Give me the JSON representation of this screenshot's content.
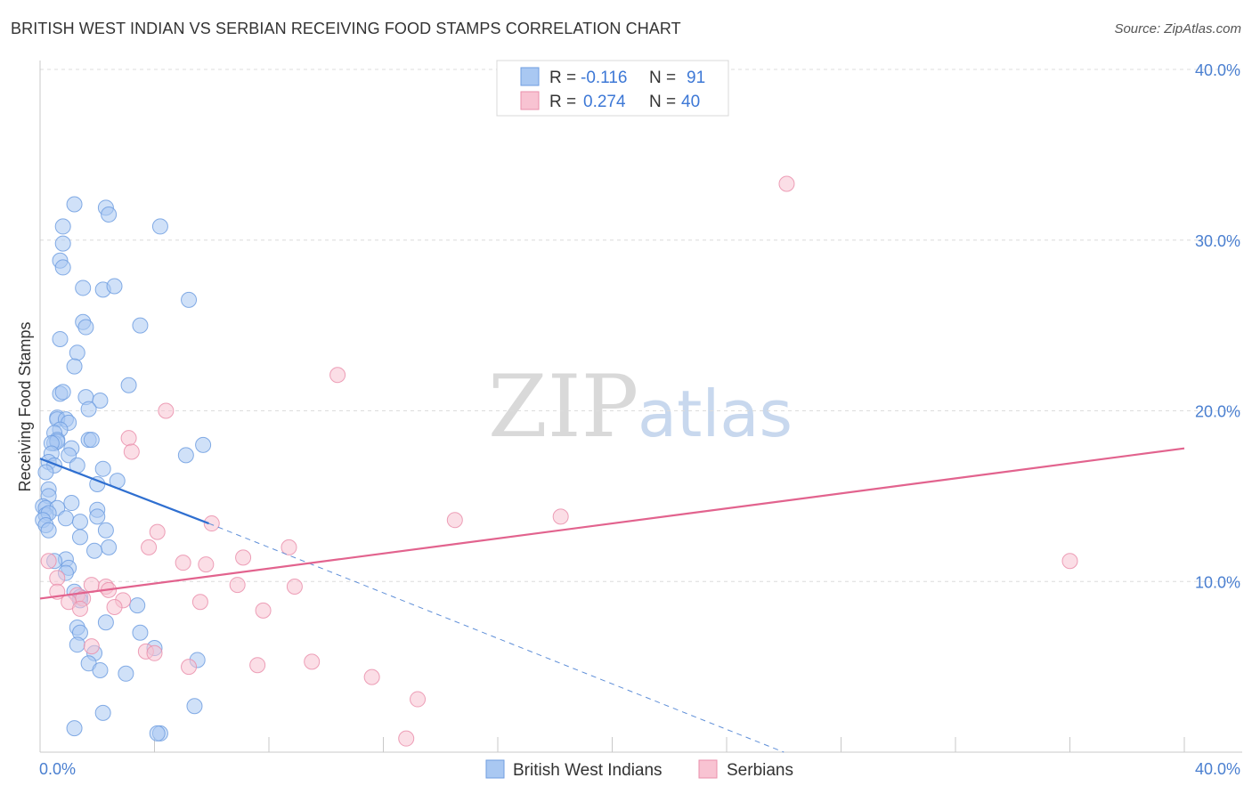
{
  "title": "BRITISH WEST INDIAN VS SERBIAN RECEIVING FOOD STAMPS CORRELATION CHART",
  "source": "Source: ZipAtlas.com",
  "watermark": {
    "zip": "ZIP",
    "atlas": "atlas"
  },
  "legend": {
    "rows": [
      {
        "r_label": "R =",
        "r_value": "-0.116",
        "n_label": "N =",
        "n_value": "91",
        "color": "#a9c8f2",
        "stroke": "#6f9ee0"
      },
      {
        "r_label": "R =",
        "r_value": "0.274",
        "n_label": "N =",
        "n_value": "40",
        "color": "#f8c3d2",
        "stroke": "#ea8fab"
      }
    ]
  },
  "bottom_legend": [
    {
      "label": "British West Indians",
      "color": "#a9c8f2",
      "stroke": "#6f9ee0"
    },
    {
      "label": "Serbians",
      "color": "#f8c3d2",
      "stroke": "#ea8fab"
    }
  ],
  "chart_data": {
    "type": "scatter",
    "title": "BRITISH WEST INDIAN VS SERBIAN RECEIVING FOOD STAMPS CORRELATION CHART",
    "xlabel": "",
    "ylabel": "Receiving Food Stamps",
    "xlim": [
      0,
      40
    ],
    "ylim": [
      0,
      40
    ],
    "x_tick_labels": [
      "0.0%",
      "40.0%"
    ],
    "y_ticks": [
      10,
      20,
      30,
      40
    ],
    "y_tick_labels": [
      "10.0%",
      "20.0%",
      "30.0%",
      "40.0%"
    ],
    "series": [
      {
        "name": "British West Indians",
        "color": "#6f9ee0",
        "fill": "#a9c8f2",
        "regression": {
          "r": -0.116,
          "n": 91,
          "x0": 0.0,
          "y0": 17.2,
          "x1": 5.9,
          "y1": 13.4,
          "dash_x1": 26.0,
          "dash_y1": 0.0
        },
        "points": [
          [
            1.2,
            32.1
          ],
          [
            2.3,
            31.9
          ],
          [
            2.4,
            31.5
          ],
          [
            0.8,
            30.8
          ],
          [
            4.2,
            30.8
          ],
          [
            0.8,
            29.8
          ],
          [
            0.7,
            28.8
          ],
          [
            0.8,
            28.4
          ],
          [
            1.5,
            27.2
          ],
          [
            2.2,
            27.1
          ],
          [
            2.6,
            27.3
          ],
          [
            5.2,
            26.5
          ],
          [
            1.5,
            25.2
          ],
          [
            1.6,
            24.9
          ],
          [
            3.5,
            25.0
          ],
          [
            0.7,
            24.2
          ],
          [
            1.3,
            23.4
          ],
          [
            1.2,
            22.6
          ],
          [
            3.1,
            21.5
          ],
          [
            0.7,
            21.0
          ],
          [
            0.8,
            21.1
          ],
          [
            1.6,
            20.8
          ],
          [
            2.1,
            20.6
          ],
          [
            1.7,
            20.1
          ],
          [
            0.6,
            19.6
          ],
          [
            0.6,
            19.5
          ],
          [
            0.9,
            19.5
          ],
          [
            1.0,
            19.3
          ],
          [
            0.7,
            18.9
          ],
          [
            0.5,
            18.7
          ],
          [
            0.6,
            18.3
          ],
          [
            0.5,
            18.1
          ],
          [
            0.6,
            18.2
          ],
          [
            0.4,
            18.1
          ],
          [
            1.7,
            18.3
          ],
          [
            1.8,
            18.3
          ],
          [
            5.7,
            18.0
          ],
          [
            1.1,
            17.8
          ],
          [
            0.4,
            17.5
          ],
          [
            1.0,
            17.4
          ],
          [
            5.1,
            17.4
          ],
          [
            0.3,
            17.0
          ],
          [
            0.5,
            16.8
          ],
          [
            1.3,
            16.8
          ],
          [
            2.2,
            16.6
          ],
          [
            0.2,
            16.4
          ],
          [
            2.7,
            15.9
          ],
          [
            2.0,
            15.7
          ],
          [
            0.3,
            15.4
          ],
          [
            0.3,
            15.0
          ],
          [
            1.1,
            14.6
          ],
          [
            0.1,
            14.4
          ],
          [
            0.2,
            14.3
          ],
          [
            0.6,
            14.3
          ],
          [
            2.0,
            14.2
          ],
          [
            0.2,
            13.9
          ],
          [
            0.3,
            14.0
          ],
          [
            2.0,
            13.8
          ],
          [
            0.9,
            13.7
          ],
          [
            1.4,
            13.5
          ],
          [
            0.1,
            13.6
          ],
          [
            0.2,
            13.3
          ],
          [
            0.3,
            13.0
          ],
          [
            2.3,
            13.0
          ],
          [
            1.4,
            12.6
          ],
          [
            2.4,
            12.0
          ],
          [
            1.9,
            11.8
          ],
          [
            0.9,
            11.3
          ],
          [
            0.5,
            11.2
          ],
          [
            1.0,
            10.8
          ],
          [
            0.9,
            10.5
          ],
          [
            1.2,
            9.4
          ],
          [
            1.4,
            9.1
          ],
          [
            1.4,
            8.9
          ],
          [
            3.4,
            8.6
          ],
          [
            1.3,
            7.3
          ],
          [
            1.4,
            7.0
          ],
          [
            3.5,
            7.0
          ],
          [
            2.3,
            7.6
          ],
          [
            1.3,
            6.3
          ],
          [
            4.0,
            6.1
          ],
          [
            1.9,
            5.8
          ],
          [
            1.7,
            5.2
          ],
          [
            5.5,
            5.4
          ],
          [
            2.1,
            4.8
          ],
          [
            3.0,
            4.6
          ],
          [
            5.4,
            2.7
          ],
          [
            2.2,
            2.3
          ],
          [
            1.2,
            1.4
          ],
          [
            4.2,
            1.1
          ],
          [
            4.1,
            1.1
          ]
        ]
      },
      {
        "name": "Serbians",
        "color": "#ea8fab",
        "fill": "#f8c3d2",
        "regression": {
          "r": 0.274,
          "n": 40,
          "x0": 0.0,
          "y0": 9.0,
          "x1": 40.0,
          "y1": 17.8
        },
        "points": [
          [
            26.1,
            33.3
          ],
          [
            10.4,
            22.1
          ],
          [
            4.4,
            20.0
          ],
          [
            3.1,
            18.4
          ],
          [
            3.2,
            17.6
          ],
          [
            14.5,
            13.6
          ],
          [
            18.2,
            13.8
          ],
          [
            36.0,
            11.2
          ],
          [
            6.0,
            13.4
          ],
          [
            4.1,
            12.9
          ],
          [
            8.7,
            12.0
          ],
          [
            3.8,
            12.0
          ],
          [
            7.1,
            11.4
          ],
          [
            5.0,
            11.1
          ],
          [
            5.8,
            11.0
          ],
          [
            0.3,
            11.2
          ],
          [
            0.6,
            10.2
          ],
          [
            8.9,
            9.7
          ],
          [
            6.9,
            9.8
          ],
          [
            1.8,
            9.8
          ],
          [
            2.3,
            9.7
          ],
          [
            2.4,
            9.5
          ],
          [
            0.6,
            9.4
          ],
          [
            1.3,
            9.2
          ],
          [
            1.5,
            9.0
          ],
          [
            2.9,
            8.9
          ],
          [
            5.6,
            8.8
          ],
          [
            1.0,
            8.8
          ],
          [
            2.6,
            8.5
          ],
          [
            1.4,
            8.4
          ],
          [
            7.8,
            8.3
          ],
          [
            1.8,
            6.2
          ],
          [
            3.7,
            5.9
          ],
          [
            4.0,
            5.8
          ],
          [
            9.5,
            5.3
          ],
          [
            7.6,
            5.1
          ],
          [
            5.2,
            5.0
          ],
          [
            11.6,
            4.4
          ],
          [
            13.2,
            3.1
          ],
          [
            12.8,
            0.8
          ]
        ]
      }
    ]
  }
}
